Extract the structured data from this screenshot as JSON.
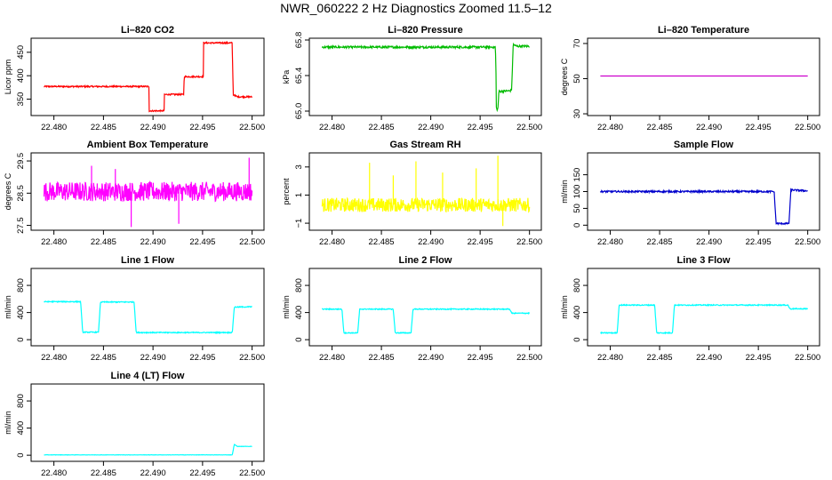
{
  "page": {
    "title": "NWR_060222  2 Hz Diagnostics Zoomed 11.5–12"
  },
  "chart_data": [
    {
      "type": "line",
      "title": "Li–820 CO2",
      "ylabel": "Licor ppm",
      "color": "#ff0000",
      "x": [
        22.479,
        22.4896,
        22.48962,
        22.49112,
        22.49114,
        22.49312,
        22.49314,
        22.49508,
        22.4951,
        22.49798,
        22.4981,
        22.4985,
        22.5
      ],
      "y": [
        377,
        377,
        325,
        325,
        360,
        360,
        398,
        398,
        470,
        470,
        360,
        355,
        355
      ],
      "noise": 1.5,
      "xlim": [
        22.4777,
        22.5012
      ],
      "ylim": [
        315,
        480
      ],
      "xticks": [
        "22.480",
        "22.485",
        "22.490",
        "22.495",
        "22.500"
      ],
      "xtick_values": [
        22.48,
        22.485,
        22.49,
        22.495,
        22.5
      ],
      "yticks": [
        "350",
        "400",
        "450"
      ],
      "ytick_values": [
        350,
        400,
        450
      ],
      "grid": false
    },
    {
      "type": "line",
      "title": "Li–820 Pressure",
      "ylabel": "kPa",
      "color": "#00bb00",
      "x": [
        22.479,
        22.49655,
        22.4966,
        22.49665,
        22.4968,
        22.4969,
        22.4981,
        22.4982,
        22.49835,
        22.4987,
        22.5
      ],
      "y": [
        65.72,
        65.72,
        65.5,
        65.02,
        65.02,
        65.22,
        65.23,
        65.25,
        65.75,
        65.73,
        65.73
      ],
      "noise": 0.012,
      "xlim": [
        22.4777,
        22.5012
      ],
      "ylim": [
        64.95,
        65.82
      ],
      "xticks": [
        "22.480",
        "22.485",
        "22.490",
        "22.495",
        "22.500"
      ],
      "xtick_values": [
        22.48,
        22.485,
        22.49,
        22.495,
        22.5
      ],
      "yticks": [
        "65.0",
        "65.4",
        "65.8"
      ],
      "ytick_values": [
        65.0,
        65.4,
        65.8
      ],
      "grid": false
    },
    {
      "type": "line",
      "title": "Li–820 Temperature",
      "ylabel": "degrees C",
      "color": "#cc00cc",
      "x": [
        22.479,
        22.5
      ],
      "y": [
        51.5,
        51.5
      ],
      "noise": 0,
      "xlim": [
        22.4777,
        22.5012
      ],
      "ylim": [
        29,
        73
      ],
      "xticks": [
        "22.480",
        "22.485",
        "22.490",
        "22.495",
        "22.500"
      ],
      "xtick_values": [
        22.48,
        22.485,
        22.49,
        22.495,
        22.5
      ],
      "yticks": [
        "30",
        "50",
        "70"
      ],
      "ytick_values": [
        30,
        50,
        70
      ],
      "grid": false
    },
    {
      "type": "line",
      "title": "Ambient Box Temperature",
      "ylabel": "degrees C",
      "color": "#ff00ff",
      "x": [
        22.479,
        22.5
      ],
      "y": [
        28.55,
        28.55
      ],
      "noise": 0.3,
      "spikes": [
        [
          22.4838,
          29.35
        ],
        [
          22.4878,
          27.45
        ],
        [
          22.4997,
          29.6
        ],
        [
          22.4862,
          29.25
        ],
        [
          22.4926,
          27.55
        ]
      ],
      "xlim": [
        22.4777,
        22.5012
      ],
      "ylim": [
        27.35,
        29.75
      ],
      "xticks": [
        "22.480",
        "22.485",
        "22.490",
        "22.495",
        "22.500"
      ],
      "xtick_values": [
        22.48,
        22.485,
        22.49,
        22.495,
        22.5
      ],
      "yticks": [
        "27.5",
        "28.5",
        "29.5"
      ],
      "ytick_values": [
        27.5,
        28.5,
        29.5
      ],
      "grid": false
    },
    {
      "type": "line",
      "title": "Gas Stream RH",
      "ylabel": "percent",
      "color": "#ffff00",
      "x": [
        22.479,
        22.5
      ],
      "y": [
        0.3,
        0.3
      ],
      "noise": 0.5,
      "spikes": [
        [
          22.4838,
          3.3
        ],
        [
          22.4885,
          3.4
        ],
        [
          22.4968,
          3.8
        ],
        [
          22.4912,
          2.6
        ],
        [
          22.4946,
          2.9
        ],
        [
          22.4862,
          2.4
        ],
        [
          22.4973,
          -1.2
        ]
      ],
      "xlim": [
        22.4777,
        22.5012
      ],
      "ylim": [
        -1.5,
        4.0
      ],
      "xticks": [
        "22.480",
        "22.485",
        "22.490",
        "22.495",
        "22.500"
      ],
      "xtick_values": [
        22.48,
        22.485,
        22.49,
        22.495,
        22.5
      ],
      "yticks": [
        "−1",
        "1",
        "3"
      ],
      "ytick_values": [
        -1,
        1,
        3
      ],
      "grid": false
    },
    {
      "type": "line",
      "title": "Sample Flow",
      "ylabel": "ml/min",
      "color": "#0000cc",
      "x": [
        22.479,
        22.4966,
        22.4968,
        22.4981,
        22.4983,
        22.5
      ],
      "y": [
        100,
        100,
        5,
        5,
        105,
        102
      ],
      "noise": 2.5,
      "xlim": [
        22.4777,
        22.5012
      ],
      "ylim": [
        -15,
        215
      ],
      "xticks": [
        "22.480",
        "22.485",
        "22.490",
        "22.495",
        "22.500"
      ],
      "xtick_values": [
        22.48,
        22.485,
        22.49,
        22.495,
        22.5
      ],
      "yticks": [
        "0",
        "50",
        "100",
        "150"
      ],
      "ytick_values": [
        0,
        50,
        100,
        150
      ],
      "grid": false
    },
    {
      "type": "line",
      "title": "Line 1 Flow",
      "ylabel": "ml/min",
      "color": "#00ffff",
      "x": [
        22.479,
        22.4827,
        22.4829,
        22.4845,
        22.4847,
        22.4881,
        22.4883,
        22.498,
        22.4982,
        22.5
      ],
      "y": [
        560,
        560,
        110,
        110,
        555,
        555,
        105,
        105,
        480,
        485
      ],
      "noise": 7,
      "xlim": [
        22.4777,
        22.5012
      ],
      "ylim": [
        -90,
        1050
      ],
      "xticks": [
        "22.480",
        "22.485",
        "22.490",
        "22.495",
        "22.500"
      ],
      "xtick_values": [
        22.48,
        22.485,
        22.49,
        22.495,
        22.5
      ],
      "yticks": [
        "0",
        "400",
        "800"
      ],
      "ytick_values": [
        0,
        400,
        800
      ],
      "grid": false
    },
    {
      "type": "line",
      "title": "Line 2 Flow",
      "ylabel": "ml/min",
      "color": "#00ffff",
      "x": [
        22.479,
        22.481,
        22.4812,
        22.4826,
        22.4828,
        22.4862,
        22.4864,
        22.488,
        22.4882,
        22.498,
        22.4982,
        22.5
      ],
      "y": [
        450,
        450,
        100,
        100,
        450,
        450,
        100,
        100,
        450,
        450,
        390,
        390
      ],
      "noise": 7,
      "xlim": [
        22.4777,
        22.5012
      ],
      "ylim": [
        -90,
        1050
      ],
      "xticks": [
        "22.480",
        "22.485",
        "22.490",
        "22.495",
        "22.500"
      ],
      "xtick_values": [
        22.48,
        22.485,
        22.49,
        22.495,
        22.5
      ],
      "yticks": [
        "0",
        "400",
        "800"
      ],
      "ytick_values": [
        0,
        400,
        800
      ],
      "grid": false
    },
    {
      "type": "line",
      "title": "Line 3 Flow",
      "ylabel": "ml/min",
      "color": "#00ffff",
      "x": [
        22.479,
        22.4807,
        22.4809,
        22.4845,
        22.4847,
        22.4863,
        22.4865,
        22.498,
        22.4982,
        22.5
      ],
      "y": [
        100,
        100,
        510,
        510,
        100,
        100,
        510,
        510,
        455,
        455
      ],
      "noise": 7,
      "xlim": [
        22.4777,
        22.5012
      ],
      "ylim": [
        -90,
        1050
      ],
      "xticks": [
        "22.480",
        "22.485",
        "22.490",
        "22.495",
        "22.500"
      ],
      "xtick_values": [
        22.48,
        22.485,
        22.49,
        22.495,
        22.5
      ],
      "yticks": [
        "0",
        "400",
        "800"
      ],
      "ytick_values": [
        0,
        400,
        800
      ],
      "grid": false
    },
    {
      "type": "line",
      "title": "Line 4 (LT) Flow",
      "ylabel": "ml/min",
      "color": "#00ffff",
      "x": [
        22.479,
        22.498,
        22.4982,
        22.4985,
        22.5
      ],
      "y": [
        5,
        5,
        160,
        130,
        130
      ],
      "noise": 2,
      "xlim": [
        22.4777,
        22.5012
      ],
      "ylim": [
        -90,
        1050
      ],
      "xticks": [
        "22.480",
        "22.485",
        "22.490",
        "22.495",
        "22.500"
      ],
      "xtick_values": [
        22.48,
        22.485,
        22.49,
        22.495,
        22.5
      ],
      "yticks": [
        "0",
        "400",
        "800"
      ],
      "ytick_values": [
        0,
        400,
        800
      ],
      "grid": false
    }
  ]
}
